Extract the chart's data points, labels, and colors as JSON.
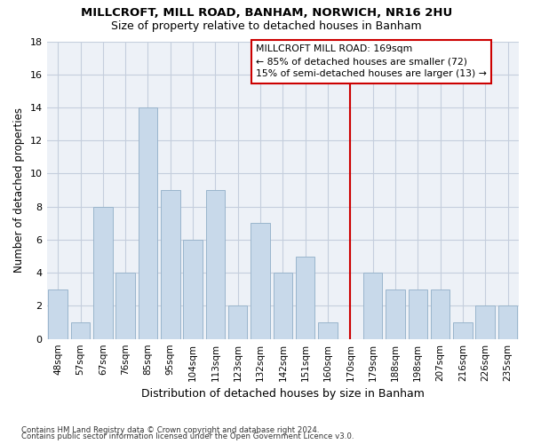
{
  "title1": "MILLCROFT, MILL ROAD, BANHAM, NORWICH, NR16 2HU",
  "title2": "Size of property relative to detached houses in Banham",
  "xlabel": "Distribution of detached houses by size in Banham",
  "ylabel": "Number of detached properties",
  "categories": [
    "48sqm",
    "57sqm",
    "67sqm",
    "76sqm",
    "85sqm",
    "95sqm",
    "104sqm",
    "113sqm",
    "123sqm",
    "132sqm",
    "142sqm",
    "151sqm",
    "160sqm",
    "170sqm",
    "179sqm",
    "188sqm",
    "198sqm",
    "207sqm",
    "216sqm",
    "226sqm",
    "235sqm"
  ],
  "values": [
    3,
    1,
    8,
    4,
    14,
    9,
    6,
    9,
    2,
    7,
    4,
    5,
    1,
    0,
    4,
    3,
    3,
    3,
    1,
    2,
    2
  ],
  "bar_color": "#c8d9ea",
  "bar_edge_color": "#9ab5cc",
  "subject_line_index": 13,
  "subject_line_color": "#cc0000",
  "annotation_title": "MILLCROFT MILL ROAD: 169sqm",
  "annotation_line1": "← 85% of detached houses are smaller (72)",
  "annotation_line2": "15% of semi-detached houses are larger (13) →",
  "annotation_box_color": "#cc0000",
  "ylim": [
    0,
    18
  ],
  "yticks": [
    0,
    2,
    4,
    6,
    8,
    10,
    12,
    14,
    16,
    18
  ],
  "footer1": "Contains HM Land Registry data © Crown copyright and database right 2024.",
  "footer2": "Contains public sector information licensed under the Open Government Licence v3.0.",
  "bg_color": "#edf1f7",
  "grid_color": "#c5cedd",
  "title1_fontsize": 9.5,
  "title2_fontsize": 9.0,
  "tick_fontsize": 7.5,
  "ylabel_fontsize": 8.5,
  "xlabel_fontsize": 9.0,
  "footer_fontsize": 6.2
}
